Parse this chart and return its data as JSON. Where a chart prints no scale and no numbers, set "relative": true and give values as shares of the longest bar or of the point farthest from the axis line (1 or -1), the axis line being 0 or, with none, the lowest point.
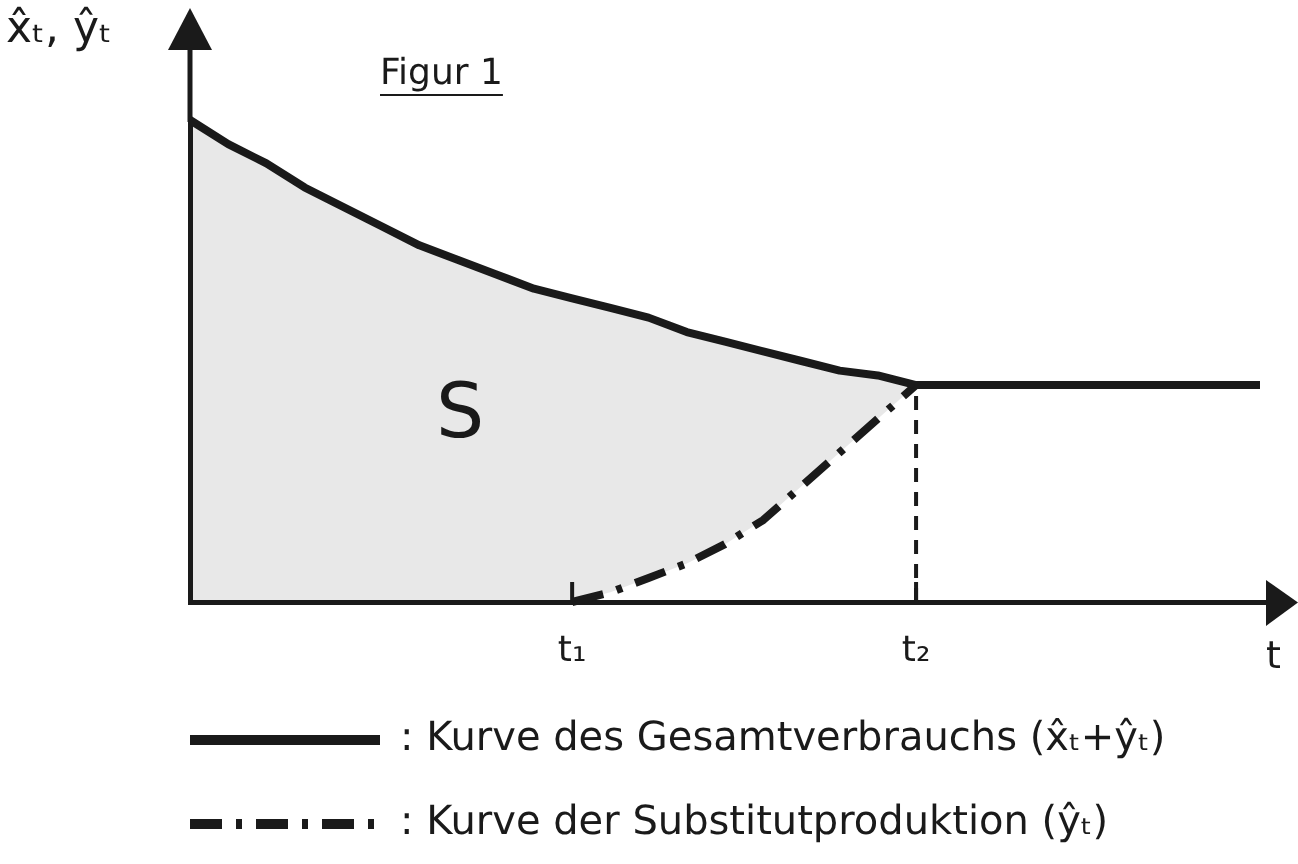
{
  "chart_data": {
    "type": "line",
    "title": "Figur 1",
    "xlabel": "t",
    "ylabel": "x̂ₜ, ŷₜ",
    "relative": true,
    "categories": [
      null,
      null,
      null,
      null,
      null,
      null,
      null,
      null,
      null,
      null,
      "t₁",
      null,
      null,
      null,
      null,
      null,
      null,
      null,
      null,
      "t₂",
      null,
      null,
      null,
      null,
      null,
      null,
      null,
      null,
      null
    ],
    "series": [
      {
        "name": ": Kurve des Gesamtverbrauchs (x̂ₜ+ŷₜ)",
        "color": "#1a1a1a",
        "line_style": "solid",
        "values": [
          1,
          0.95,
          0.91,
          0.86,
          0.82,
          0.78,
          0.74,
          0.71,
          0.68,
          0.65,
          0.63,
          0.61,
          0.59,
          0.56,
          0.54,
          0.52,
          0.5,
          0.48,
          0.47,
          0.45,
          0.45,
          0.45,
          0.45,
          0.45,
          0.45,
          0.45,
          0.45,
          0.45,
          0.45
        ],
        "upper": [
          1,
          0.95,
          0.91,
          0.86,
          0.82,
          0.78,
          0.74,
          0.71,
          0.68,
          0.65,
          0.63,
          0.61,
          0.59,
          0.56,
          0.54,
          0.52,
          0.5,
          0.48,
          0.47,
          0.45,
          null,
          null,
          null,
          null,
          null,
          null,
          null,
          null,
          null
        ],
        "lower": [
          0,
          0,
          0,
          0,
          0,
          0,
          0,
          0,
          0,
          0,
          0,
          0.02,
          0.05,
          0.08,
          0.12,
          0.17,
          0.24,
          0.31,
          0.38,
          0.45,
          null,
          null,
          null,
          null,
          null,
          null,
          null,
          null,
          null
        ]
      },
      {
        "name": ": Kurve der Substitutproduktion (ŷₜ)",
        "color": "#1a1a1a",
        "line_style": "dashed",
        "values": [
          null,
          null,
          null,
          null,
          null,
          null,
          null,
          null,
          null,
          null,
          0,
          0.02,
          0.05,
          0.08,
          0.12,
          0.17,
          0.24,
          0.31,
          0.38,
          0.45,
          null,
          null,
          null,
          null,
          null,
          null,
          null,
          null,
          null
        ]
      }
    ],
    "ref_lines": [
      {
        "axis": "x",
        "value": "t₂",
        "color": "#1a1a1a",
        "line_style": "dashed"
      }
    ],
    "annotations": [
      "S"
    ],
    "marker": "none",
    "grid": false,
    "legend": "bottom",
    "tick_labels": "x"
  }
}
